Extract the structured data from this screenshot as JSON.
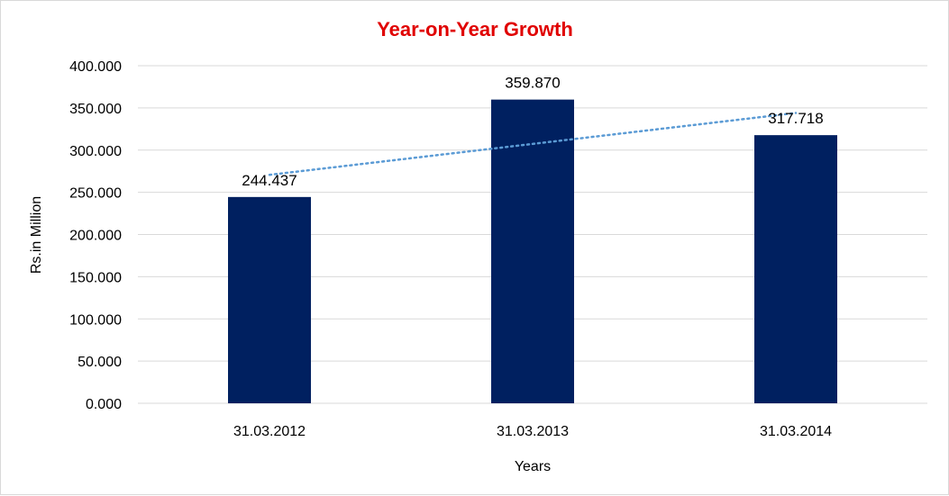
{
  "chart_data": {
    "type": "bar",
    "title": "Year-on-Year Growth",
    "xlabel": "Years",
    "ylabel": "Rs.in Million",
    "categories": [
      "31.03.2012",
      "31.03.2013",
      "31.03.2014"
    ],
    "values": [
      244.437,
      359.87,
      317.718
    ],
    "value_labels": [
      "244.437",
      "359.870",
      "317.718"
    ],
    "ylim": [
      0,
      400
    ],
    "yticks": [
      0,
      50,
      100,
      150,
      200,
      250,
      300,
      350,
      400
    ],
    "ytick_labels": [
      "0.000",
      "50.000",
      "100.000",
      "150.000",
      "200.000",
      "250.000",
      "300.000",
      "350.000",
      "400.000"
    ],
    "grid": true,
    "legend": "none",
    "trendline": {
      "type": "linear",
      "style": "dotted"
    },
    "colors": {
      "bar": "#002060",
      "title": "#e00000",
      "trendline": "#5b9bd5",
      "grid": "#d9d9d9"
    }
  }
}
